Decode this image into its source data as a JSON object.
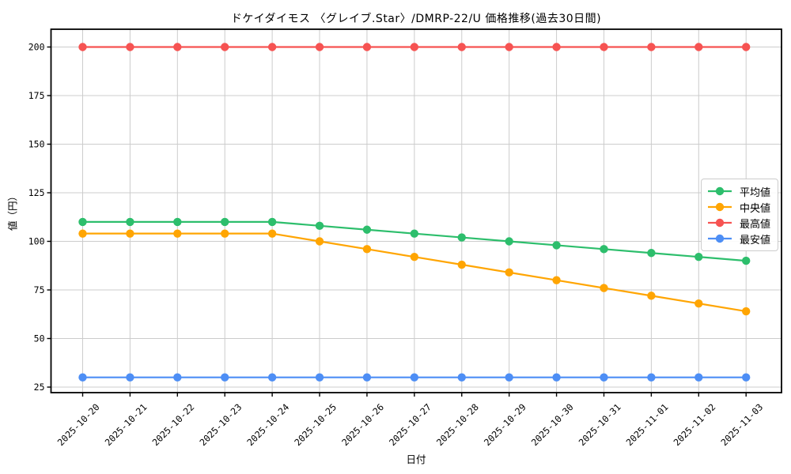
{
  "chart_data": {
    "type": "line",
    "title": "ドケイダイモス 〈グレイブ.Star〉/DMRP-22/U 価格推移(過去30日間)",
    "xlabel": "日付",
    "ylabel": "値（円）",
    "x": [
      "2025-10-20",
      "2025-10-21",
      "2025-10-22",
      "2025-10-23",
      "2025-10-24",
      "2025-10-25",
      "2025-10-26",
      "2025-10-27",
      "2025-10-28",
      "2025-10-29",
      "2025-10-30",
      "2025-10-31",
      "2025-11-01",
      "2025-11-02",
      "2025-11-03"
    ],
    "series": [
      {
        "key": "average",
        "name": "平均値",
        "color": "#2DBE6C",
        "values": [
          110,
          110,
          110,
          110,
          110,
          108,
          106,
          104,
          102,
          100,
          98,
          96,
          94,
          92,
          90
        ]
      },
      {
        "key": "median",
        "name": "中央値",
        "color": "#FFA502",
        "values": [
          104,
          104,
          104,
          104,
          104,
          100,
          96,
          92,
          88,
          84,
          80,
          76,
          72,
          68,
          64
        ]
      },
      {
        "key": "highest",
        "name": "最高値",
        "color": "#F65352",
        "values": [
          200,
          200,
          200,
          200,
          200,
          200,
          200,
          200,
          200,
          200,
          200,
          200,
          200,
          200,
          200
        ]
      },
      {
        "key": "lowest",
        "name": "最安値",
        "color": "#4D8EF5",
        "values": [
          30,
          30,
          30,
          30,
          30,
          30,
          30,
          30,
          30,
          30,
          30,
          30,
          30,
          30,
          30
        ]
      }
    ],
    "yticks": [
      "25",
      "50",
      "75",
      "100",
      "125",
      "150",
      "175",
      "200"
    ],
    "ylim": [
      21.8,
      209.2
    ],
    "grid": true,
    "grid_color": "#cccccc",
    "axis_color": "#000000",
    "legend_position": "center-right"
  }
}
